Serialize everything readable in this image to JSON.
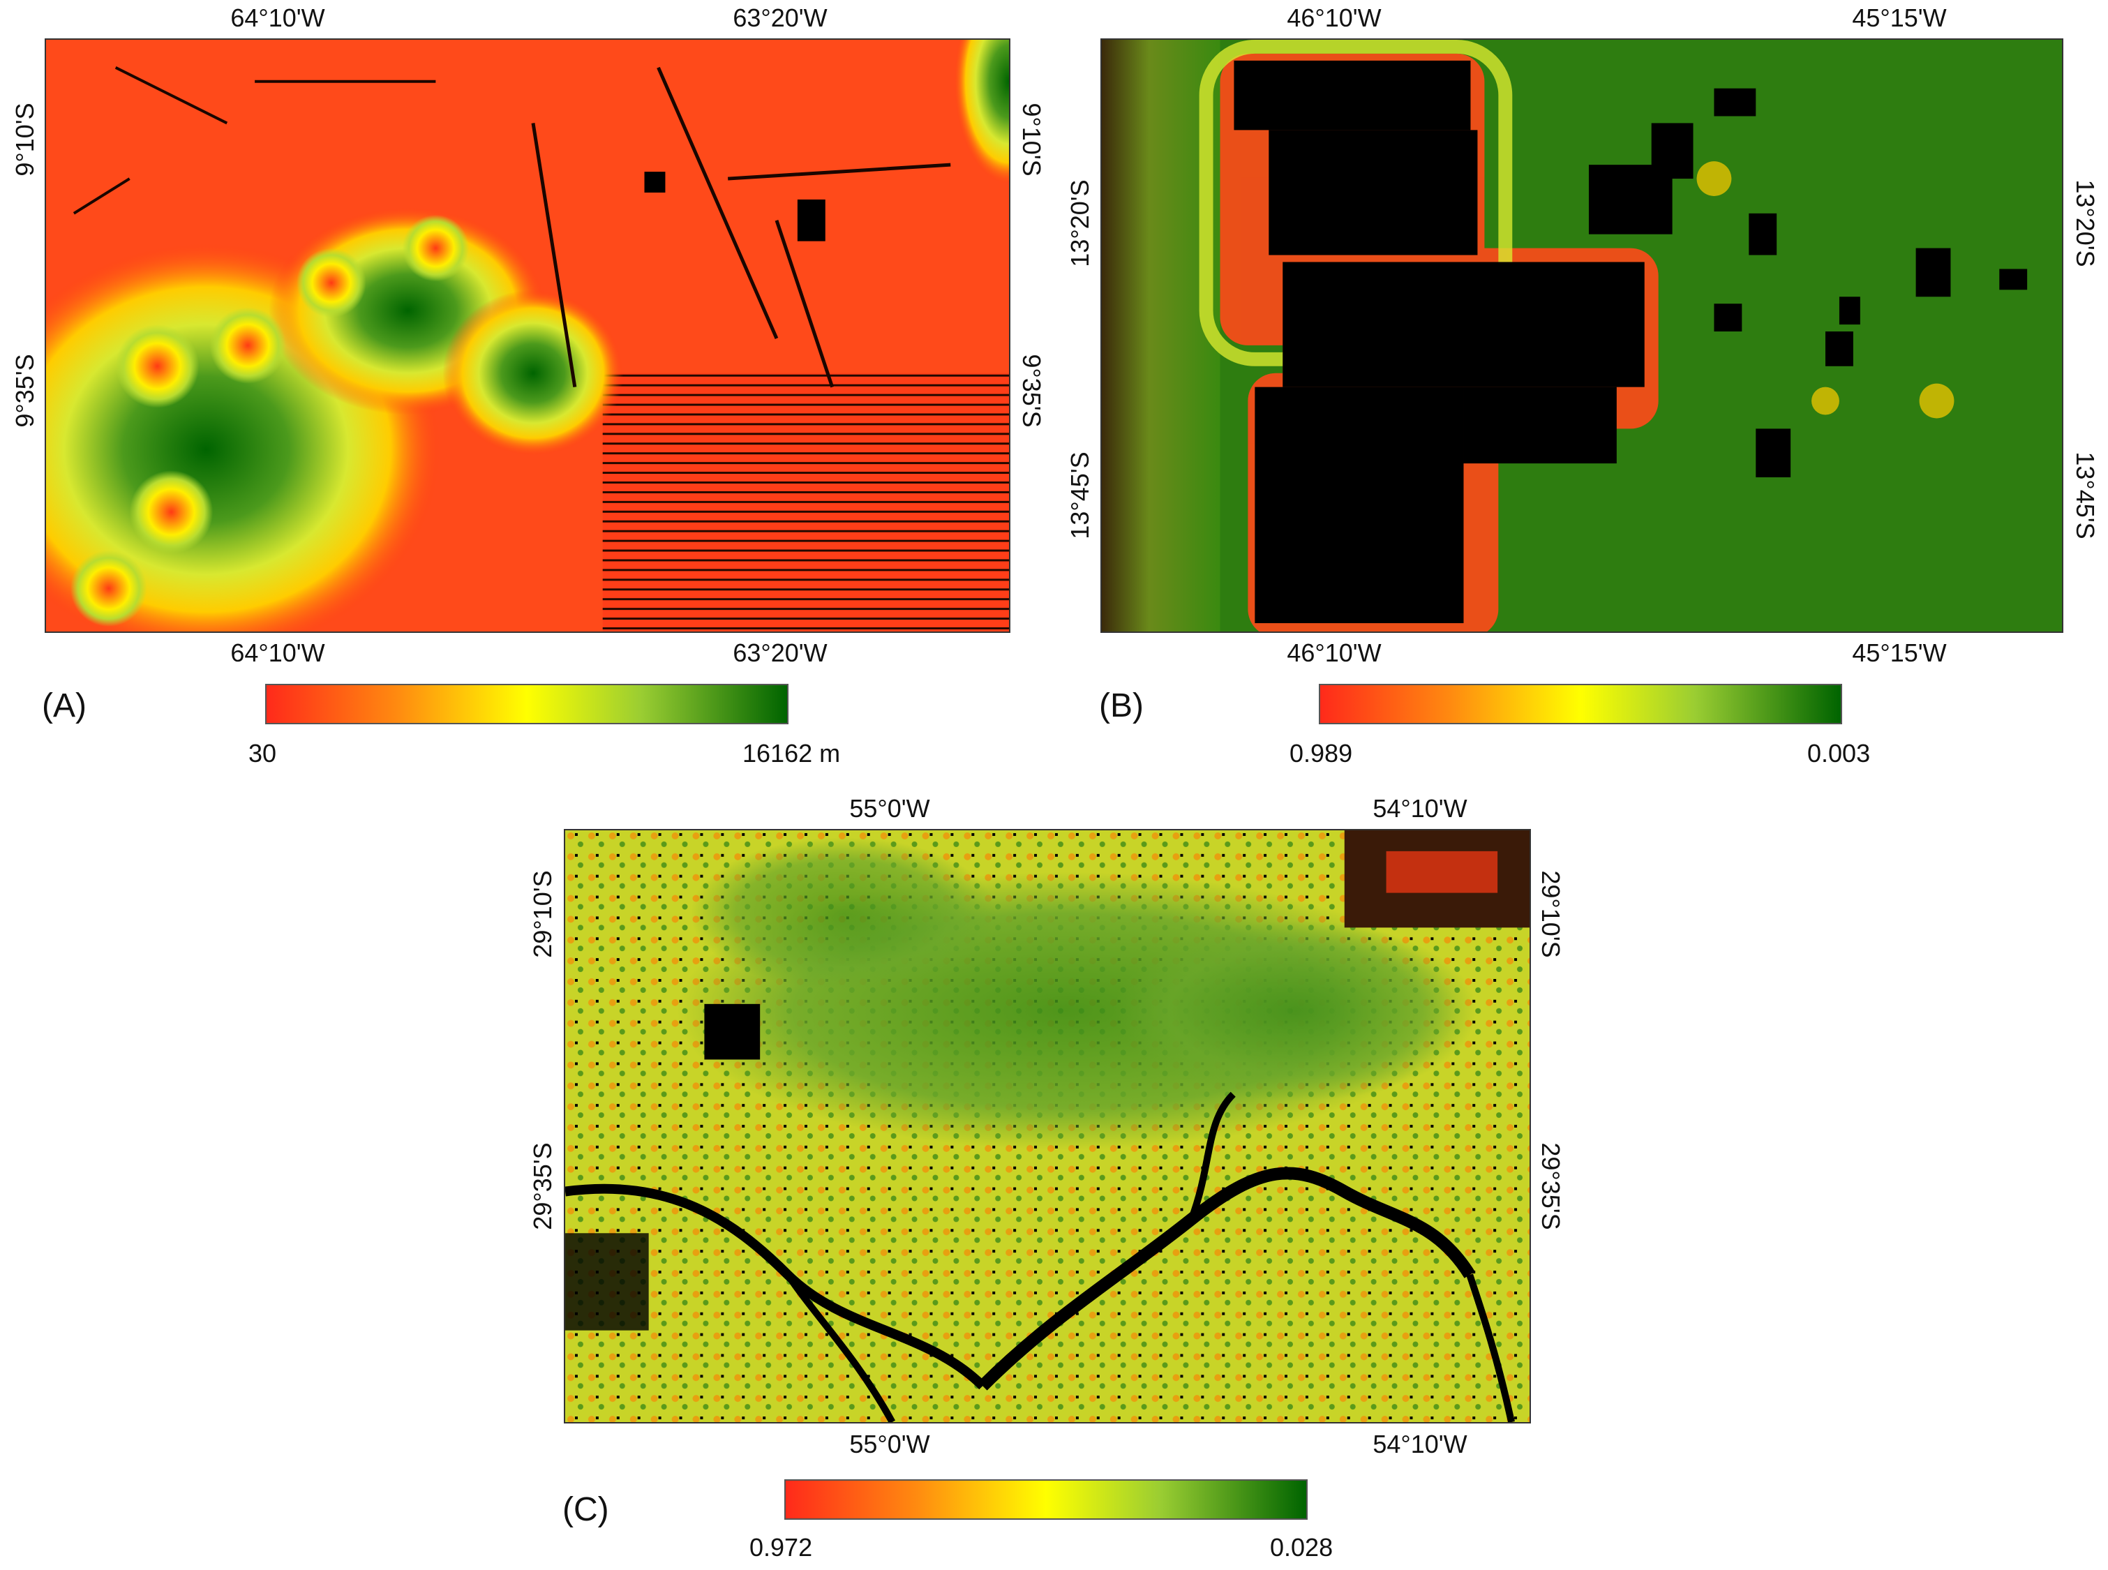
{
  "colors": {
    "red": "#ff2a1a",
    "orange": "#ff7a10",
    "yellow": "#ffff00",
    "lightgreen": "#9acd32",
    "darkgreen": "#006400",
    "black": "#000000"
  },
  "panels": [
    {
      "id": "A",
      "label": "(A)",
      "ticks": {
        "top": [
          "64°10'W",
          "63°20'W"
        ],
        "bottom": [
          "64°10'W",
          "63°20'W"
        ],
        "left": [
          "9°10'S",
          "9°35'S"
        ],
        "right": [
          "9°10'S",
          "9°35'S"
        ]
      },
      "colorbar": {
        "min_label": "30",
        "max_label": "16162 m"
      }
    },
    {
      "id": "B",
      "label": "(B)",
      "ticks": {
        "top": [
          "46°10'W",
          "45°15'W"
        ],
        "bottom": [
          "46°10'W",
          "45°15'W"
        ],
        "left": [
          "13°20'S",
          "13°45'S"
        ],
        "right": [
          "13°20'S",
          "13°45'S"
        ]
      },
      "colorbar": {
        "min_label": "0.989",
        "max_label": "0.003"
      }
    },
    {
      "id": "C",
      "label": "(C)",
      "ticks": {
        "top": [
          "55°0'W",
          "54°10'W"
        ],
        "bottom": [
          "55°0'W",
          "54°10'W"
        ],
        "left": [
          "29°10'S",
          "29°35'S"
        ],
        "right": [
          "29°10'S",
          "29°35'S"
        ]
      },
      "colorbar": {
        "min_label": "0.972",
        "max_label": "0.028"
      }
    }
  ]
}
